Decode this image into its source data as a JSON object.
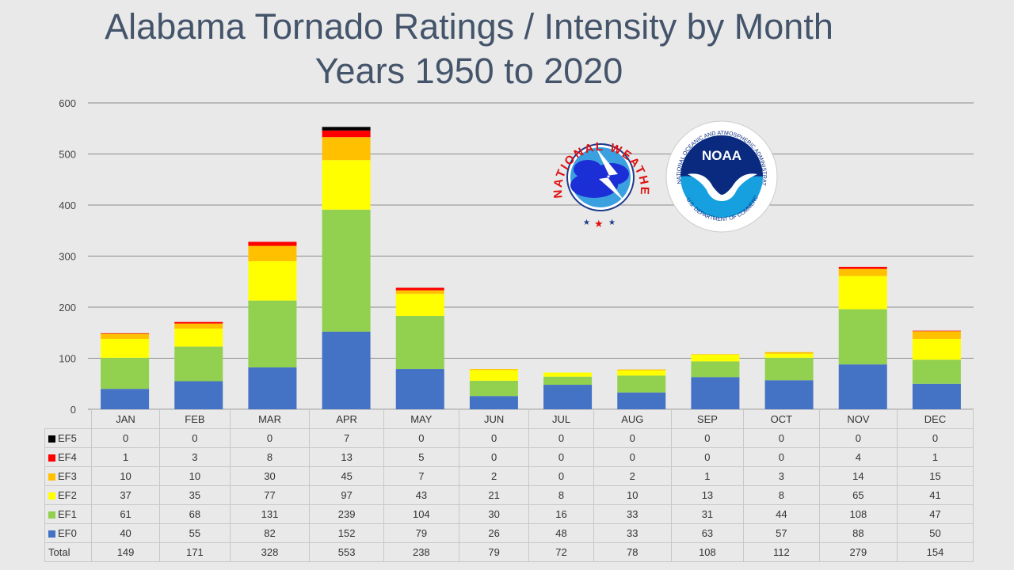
{
  "title_line1": "Alabama Tornado Ratings / Intensity by Month",
  "title_line2": "Years 1950 to 2020",
  "logos": {
    "nws_text": "NATIONAL WEATHER SERVICE",
    "noaa_wordmark": "NOAA",
    "noaa_ring_text": "NATIONAL OCEANIC AND ATMOSPHERIC ADMINISTRATION",
    "noaa_bottom_text": "U.S. DEPARTMENT OF COMMERCE"
  },
  "colors": {
    "EF0": "#4472c4",
    "EF1": "#92d050",
    "EF2": "#ffff00",
    "EF3": "#ffc000",
    "EF4": "#ff0000",
    "EF5": "#000000",
    "title": "#44546a"
  },
  "chart_data": {
    "type": "bar",
    "stacked": true,
    "title": "Alabama Tornado Ratings / Intensity by Month Years 1950 to 2020",
    "categories": [
      "JAN",
      "FEB",
      "MAR",
      "APR",
      "MAY",
      "JUN",
      "JUL",
      "AUG",
      "SEP",
      "OCT",
      "NOV",
      "DEC"
    ],
    "ylim": [
      0,
      600
    ],
    "yticks": [
      0,
      100,
      200,
      300,
      400,
      500,
      600
    ],
    "grid": true,
    "series": [
      {
        "name": "EF0",
        "values": [
          40,
          55,
          82,
          152,
          79,
          26,
          48,
          33,
          63,
          57,
          88,
          50
        ]
      },
      {
        "name": "EF1",
        "values": [
          61,
          68,
          131,
          239,
          104,
          30,
          16,
          33,
          31,
          44,
          108,
          47
        ]
      },
      {
        "name": "EF2",
        "values": [
          37,
          35,
          77,
          97,
          43,
          21,
          8,
          10,
          13,
          8,
          65,
          41
        ]
      },
      {
        "name": "EF3",
        "values": [
          10,
          10,
          30,
          45,
          7,
          2,
          0,
          2,
          1,
          3,
          14,
          15
        ]
      },
      {
        "name": "EF4",
        "values": [
          1,
          3,
          8,
          13,
          5,
          0,
          0,
          0,
          0,
          0,
          4,
          1
        ]
      },
      {
        "name": "EF5",
        "values": [
          0,
          0,
          0,
          7,
          0,
          0,
          0,
          0,
          0,
          0,
          0,
          0
        ]
      }
    ],
    "table_row_order": [
      "EF5",
      "EF4",
      "EF3",
      "EF2",
      "EF1",
      "EF0"
    ],
    "total_label": "Total",
    "totals": [
      149,
      171,
      328,
      553,
      238,
      79,
      72,
      78,
      108,
      112,
      279,
      154
    ]
  }
}
